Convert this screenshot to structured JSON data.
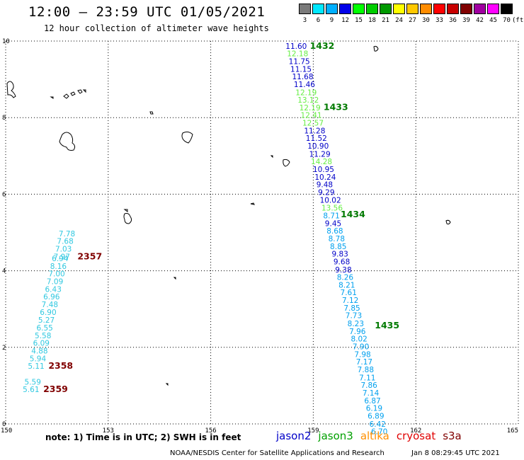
{
  "header": {
    "title": "12:00 – 23:59 UTC 01/05/2021",
    "subtitle": "12 hour collection of altimeter wave heights"
  },
  "colorbar": {
    "unit": "(ft)",
    "swatches": [
      {
        "label": "3",
        "color": "#7a7a7a"
      },
      {
        "label": "6",
        "color": "#00e8ff"
      },
      {
        "label": "9",
        "color": "#00b0ff"
      },
      {
        "label": "12",
        "color": "#0000e8"
      },
      {
        "label": "15",
        "color": "#00ff00"
      },
      {
        "label": "18",
        "color": "#00cc00"
      },
      {
        "label": "21",
        "color": "#009900"
      },
      {
        "label": "24",
        "color": "#ffff00"
      },
      {
        "label": "27",
        "color": "#ffc800"
      },
      {
        "label": "30",
        "color": "#ff8c00"
      },
      {
        "label": "33",
        "color": "#ff0000"
      },
      {
        "label": "36",
        "color": "#c80000"
      },
      {
        "label": "39",
        "color": "#800000"
      },
      {
        "label": "42",
        "color": "#a000a0"
      },
      {
        "label": "45",
        "color": "#ff00ff"
      },
      {
        "label": "70",
        "color": "#000000"
      }
    ]
  },
  "axes": {
    "lon_ticks": [
      "150",
      "153",
      "156",
      "159",
      "162",
      "165"
    ],
    "lat_ticks": [
      "0",
      "2",
      "4",
      "6",
      "8",
      "10"
    ],
    "lon_range": [
      150,
      165
    ],
    "lat_range": [
      0,
      10
    ]
  },
  "observations": [
    {
      "value": "11.60",
      "color": "#0000c8",
      "lon": 158.19,
      "lat": 9.8
    },
    {
      "value": "12.18",
      "color": "#66ee44",
      "lon": 158.23,
      "lat": 9.6
    },
    {
      "value": "11.75",
      "color": "#0000c8",
      "lon": 158.28,
      "lat": 9.4
    },
    {
      "value": "11.15",
      "color": "#0000c8",
      "lon": 158.33,
      "lat": 9.2
    },
    {
      "value": "11.68",
      "color": "#0000c8",
      "lon": 158.38,
      "lat": 9.0
    },
    {
      "value": "11.46",
      "color": "#0000c8",
      "lon": 158.43,
      "lat": 8.8
    },
    {
      "value": "12.19",
      "color": "#66ee44",
      "lon": 158.48,
      "lat": 8.59
    },
    {
      "value": "13.12",
      "color": "#66ee44",
      "lon": 158.54,
      "lat": 8.39
    },
    {
      "value": "12.19",
      "color": "#66ee44",
      "lon": 158.59,
      "lat": 8.19
    },
    {
      "value": "12.41",
      "color": "#66ee44",
      "lon": 158.63,
      "lat": 7.99
    },
    {
      "value": "12.57",
      "color": "#66ee44",
      "lon": 158.68,
      "lat": 7.79
    },
    {
      "value": "11.28",
      "color": "#0000c8",
      "lon": 158.73,
      "lat": 7.59
    },
    {
      "value": "11.52",
      "color": "#0000c8",
      "lon": 158.78,
      "lat": 7.39
    },
    {
      "value": "10.90",
      "color": "#0000c8",
      "lon": 158.83,
      "lat": 7.19
    },
    {
      "value": "11.29",
      "color": "#0000c8",
      "lon": 158.88,
      "lat": 6.98
    },
    {
      "value": "14.28",
      "color": "#66ee44",
      "lon": 158.93,
      "lat": 6.78
    },
    {
      "value": "10.95",
      "color": "#0000c8",
      "lon": 158.99,
      "lat": 6.58
    },
    {
      "value": "10.24",
      "color": "#0000c8",
      "lon": 159.04,
      "lat": 6.38
    },
    {
      "value": "9.48",
      "color": "#0000c8",
      "lon": 159.09,
      "lat": 6.18
    },
    {
      "value": "9.29",
      "color": "#0000c8",
      "lon": 159.14,
      "lat": 5.98
    },
    {
      "value": "10.02",
      "color": "#0000c8",
      "lon": 159.19,
      "lat": 5.78
    },
    {
      "value": "13.56",
      "color": "#66ee44",
      "lon": 159.24,
      "lat": 5.57
    },
    {
      "value": "8.71",
      "color": "#00a0ee",
      "lon": 159.29,
      "lat": 5.37
    },
    {
      "value": "9.45",
      "color": "#0000c8",
      "lon": 159.34,
      "lat": 5.17
    },
    {
      "value": "8.68",
      "color": "#00a0ee",
      "lon": 159.39,
      "lat": 4.97
    },
    {
      "value": "8.78",
      "color": "#00a0ee",
      "lon": 159.44,
      "lat": 4.77
    },
    {
      "value": "8.85",
      "color": "#00a0ee",
      "lon": 159.49,
      "lat": 4.57
    },
    {
      "value": "9.83",
      "color": "#0000c8",
      "lon": 159.54,
      "lat": 4.37
    },
    {
      "value": "9.68",
      "color": "#0000c8",
      "lon": 159.59,
      "lat": 4.17
    },
    {
      "value": "9.38",
      "color": "#0000c8",
      "lon": 159.64,
      "lat": 3.96
    },
    {
      "value": "8.26",
      "color": "#00a0ee",
      "lon": 159.69,
      "lat": 3.76
    },
    {
      "value": "8.21",
      "color": "#00a0ee",
      "lon": 159.74,
      "lat": 3.56
    },
    {
      "value": "7.61",
      "color": "#00a0ee",
      "lon": 159.79,
      "lat": 3.36
    },
    {
      "value": "7.12",
      "color": "#00a0ee",
      "lon": 159.84,
      "lat": 3.16
    },
    {
      "value": "7.85",
      "color": "#00a0ee",
      "lon": 159.89,
      "lat": 2.96
    },
    {
      "value": "7.73",
      "color": "#00a0ee",
      "lon": 159.94,
      "lat": 2.76
    },
    {
      "value": "8.23",
      "color": "#00a0ee",
      "lon": 160.0,
      "lat": 2.55
    },
    {
      "value": "7.96",
      "color": "#00a0ee",
      "lon": 160.05,
      "lat": 2.35
    },
    {
      "value": "8.02",
      "color": "#00a0ee",
      "lon": 160.1,
      "lat": 2.15
    },
    {
      "value": "7.90",
      "color": "#00a0ee",
      "lon": 160.15,
      "lat": 1.95
    },
    {
      "value": "7.98",
      "color": "#00a0ee",
      "lon": 160.2,
      "lat": 1.75
    },
    {
      "value": "7.17",
      "color": "#00a0ee",
      "lon": 160.25,
      "lat": 1.55
    },
    {
      "value": "7.88",
      "color": "#00a0ee",
      "lon": 160.29,
      "lat": 1.35
    },
    {
      "value": "7.11",
      "color": "#00a0ee",
      "lon": 160.34,
      "lat": 1.14
    },
    {
      "value": "7.86",
      "color": "#00a0ee",
      "lon": 160.39,
      "lat": 0.94
    },
    {
      "value": "7.14",
      "color": "#00a0ee",
      "lon": 160.44,
      "lat": 0.74
    },
    {
      "value": "6.87",
      "color": "#00a0ee",
      "lon": 160.49,
      "lat": 0.54
    },
    {
      "value": "6.19",
      "color": "#00a0ee",
      "lon": 160.54,
      "lat": 0.34
    },
    {
      "value": "6.89",
      "color": "#00a0ee",
      "lon": 160.59,
      "lat": 0.14
    },
    {
      "value": "6.42",
      "color": "#00a0ee",
      "lon": 160.64,
      "lat": -0.07
    },
    {
      "value": "6.70",
      "color": "#00a0ee",
      "lon": 160.69,
      "lat": -0.27
    },
    {
      "value": "7.78",
      "color": "#30c8e0",
      "lon": 151.55,
      "lat": 4.9
    },
    {
      "value": "7.68",
      "color": "#30c8e0",
      "lon": 151.5,
      "lat": 4.7
    },
    {
      "value": "7.03",
      "color": "#30c8e0",
      "lon": 151.45,
      "lat": 4.5
    },
    {
      "value": "7.97",
      "color": "#30c8e0",
      "lon": 151.4,
      "lat": 4.3
    },
    {
      "value": "6.94",
      "color": "#30c8e0",
      "lon": 151.35,
      "lat": 4.25
    },
    {
      "value": "8.16",
      "color": "#30c8e0",
      "lon": 151.3,
      "lat": 4.05
    },
    {
      "value": "7.00",
      "color": "#30c8e0",
      "lon": 151.25,
      "lat": 3.85
    },
    {
      "value": "7.09",
      "color": "#30c8e0",
      "lon": 151.2,
      "lat": 3.65
    },
    {
      "value": "6.43",
      "color": "#30c8e0",
      "lon": 151.15,
      "lat": 3.45
    },
    {
      "value": "6.96",
      "color": "#30c8e0",
      "lon": 151.1,
      "lat": 3.25
    },
    {
      "value": "7.48",
      "color": "#30c8e0",
      "lon": 151.05,
      "lat": 3.05
    },
    {
      "value": "6.90",
      "color": "#30c8e0",
      "lon": 151.0,
      "lat": 2.85
    },
    {
      "value": "5.27",
      "color": "#30c8e0",
      "lon": 150.95,
      "lat": 2.64
    },
    {
      "value": "6.55",
      "color": "#30c8e0",
      "lon": 150.9,
      "lat": 2.44
    },
    {
      "value": "5.58",
      "color": "#30c8e0",
      "lon": 150.85,
      "lat": 2.24
    },
    {
      "value": "6.09",
      "color": "#30c8e0",
      "lon": 150.8,
      "lat": 2.04
    },
    {
      "value": "4.88",
      "color": "#30c8e0",
      "lon": 150.75,
      "lat": 1.84
    },
    {
      "value": "5.94",
      "color": "#30c8e0",
      "lon": 150.7,
      "lat": 1.64
    },
    {
      "value": "5.11",
      "color": "#30c8e0",
      "lon": 150.65,
      "lat": 1.44
    },
    {
      "value": "5.59",
      "color": "#30c8e0",
      "lon": 150.55,
      "lat": 1.03
    },
    {
      "value": "5.61",
      "color": "#30c8e0",
      "lon": 150.5,
      "lat": 0.83
    }
  ],
  "time_markers": [
    {
      "label": "1432",
      "color": "#007a00",
      "lon": 158.9,
      "lat": 9.8
    },
    {
      "label": "1433",
      "color": "#007a00",
      "lon": 159.3,
      "lat": 8.2
    },
    {
      "label": "1434",
      "color": "#007a00",
      "lon": 159.8,
      "lat": 5.4
    },
    {
      "label": "1435",
      "color": "#007a00",
      "lon": 160.8,
      "lat": 2.5
    },
    {
      "label": "2357",
      "color": "#800000",
      "lon": 152.1,
      "lat": 4.3
    },
    {
      "label": "2358",
      "color": "#800000",
      "lon": 151.25,
      "lat": 1.44
    },
    {
      "label": "2359",
      "color": "#800000",
      "lon": 151.1,
      "lat": 0.83
    }
  ],
  "notes": "note:  1) Time is in UTC;  2) SWH is in feet",
  "legend": [
    {
      "label": "jason2",
      "color": "#0000c8"
    },
    {
      "label": "jason3",
      "color": "#00a000"
    },
    {
      "label": "altika",
      "color": "#ff9000"
    },
    {
      "label": "cryosat",
      "color": "#e00000"
    },
    {
      "label": "s3a",
      "color": "#800000"
    }
  ],
  "footer": {
    "credit": "NOAA/NESDIS Center for Satellite Applications and Research",
    "date": "Jan  8 08:29:45 UTC 2021"
  }
}
